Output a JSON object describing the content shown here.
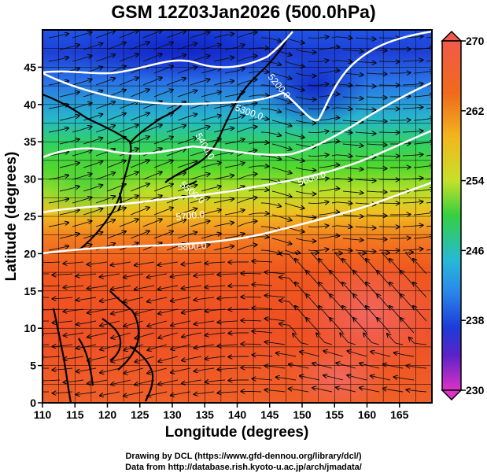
{
  "title": "GSM 12Z03Jan2026 (500.0hPa)",
  "axes": {
    "xlabel": "Longitude (degrees)",
    "ylabel": "Latitude  (degrees)",
    "xrange": [
      110,
      170
    ],
    "yrange": [
      0,
      50
    ],
    "xticks": [
      "110",
      "115",
      "120",
      "125",
      "130",
      "135",
      "140",
      "145",
      "150",
      "155",
      "160",
      "165"
    ],
    "yticks": [
      "0",
      "5",
      "10",
      "15",
      "20",
      "25",
      "30",
      "35",
      "40",
      "45"
    ],
    "grid": true
  },
  "colorbar": {
    "range": [
      230,
      270
    ],
    "labels": [
      "270",
      "262",
      "254",
      "246",
      "238",
      "230"
    ]
  },
  "contour_labels": [
    "5200.0",
    "5300.0",
    "5400.0",
    "5500.0",
    "5600.0",
    "5700.0",
    "5800.0"
  ],
  "credits": {
    "line1": "Drawing by DCL (https://www.gfd-dennou.org/library/dcl/)",
    "line2": "Data from http://database.rish.kyoto-u.ac.jp/arch/jmadata/"
  }
}
